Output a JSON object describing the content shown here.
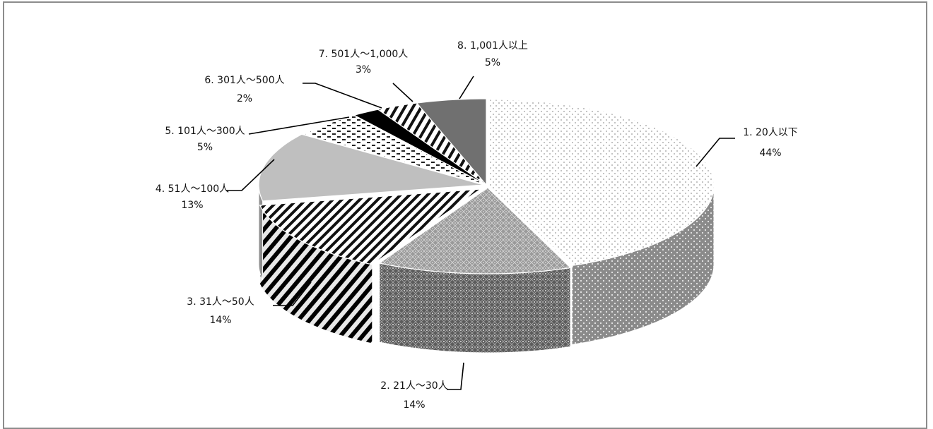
{
  "chart_data": {
    "type": "pie",
    "style": "3d-exploded-pie",
    "legend": "none",
    "slices": [
      {
        "label": "1. 20人以下",
        "value": 44,
        "value_label": "44%",
        "pattern": "dots-light"
      },
      {
        "label": "2. 21人～30人",
        "value": 14,
        "value_label": "14%",
        "pattern": "diamond-grid"
      },
      {
        "label": "3. 31人～50人",
        "value": 14,
        "value_label": "14%",
        "pattern": "diagonal-stripes"
      },
      {
        "label": "4. 51人～100人",
        "value": 13,
        "value_label": "13%",
        "pattern": "solid-light-gray"
      },
      {
        "label": "5. 101人～300人",
        "value": 5,
        "value_label": "5%",
        "pattern": "dashed-dots"
      },
      {
        "label": "6. 301人～500人",
        "value": 2,
        "value_label": "2%",
        "pattern": "solid-black"
      },
      {
        "label": "7. 501人～1,000人",
        "value": 3,
        "value_label": "3%",
        "pattern": "horizontal-stripes"
      },
      {
        "label": "8. 1,001人以上",
        "value": 5,
        "value_label": "5%",
        "pattern": "solid-dark-gray"
      }
    ],
    "colors": {
      "frame": "#8c8c8c",
      "dark_gray": "#707070",
      "light_gray": "#bfbfbf",
      "black": "#000000"
    }
  }
}
